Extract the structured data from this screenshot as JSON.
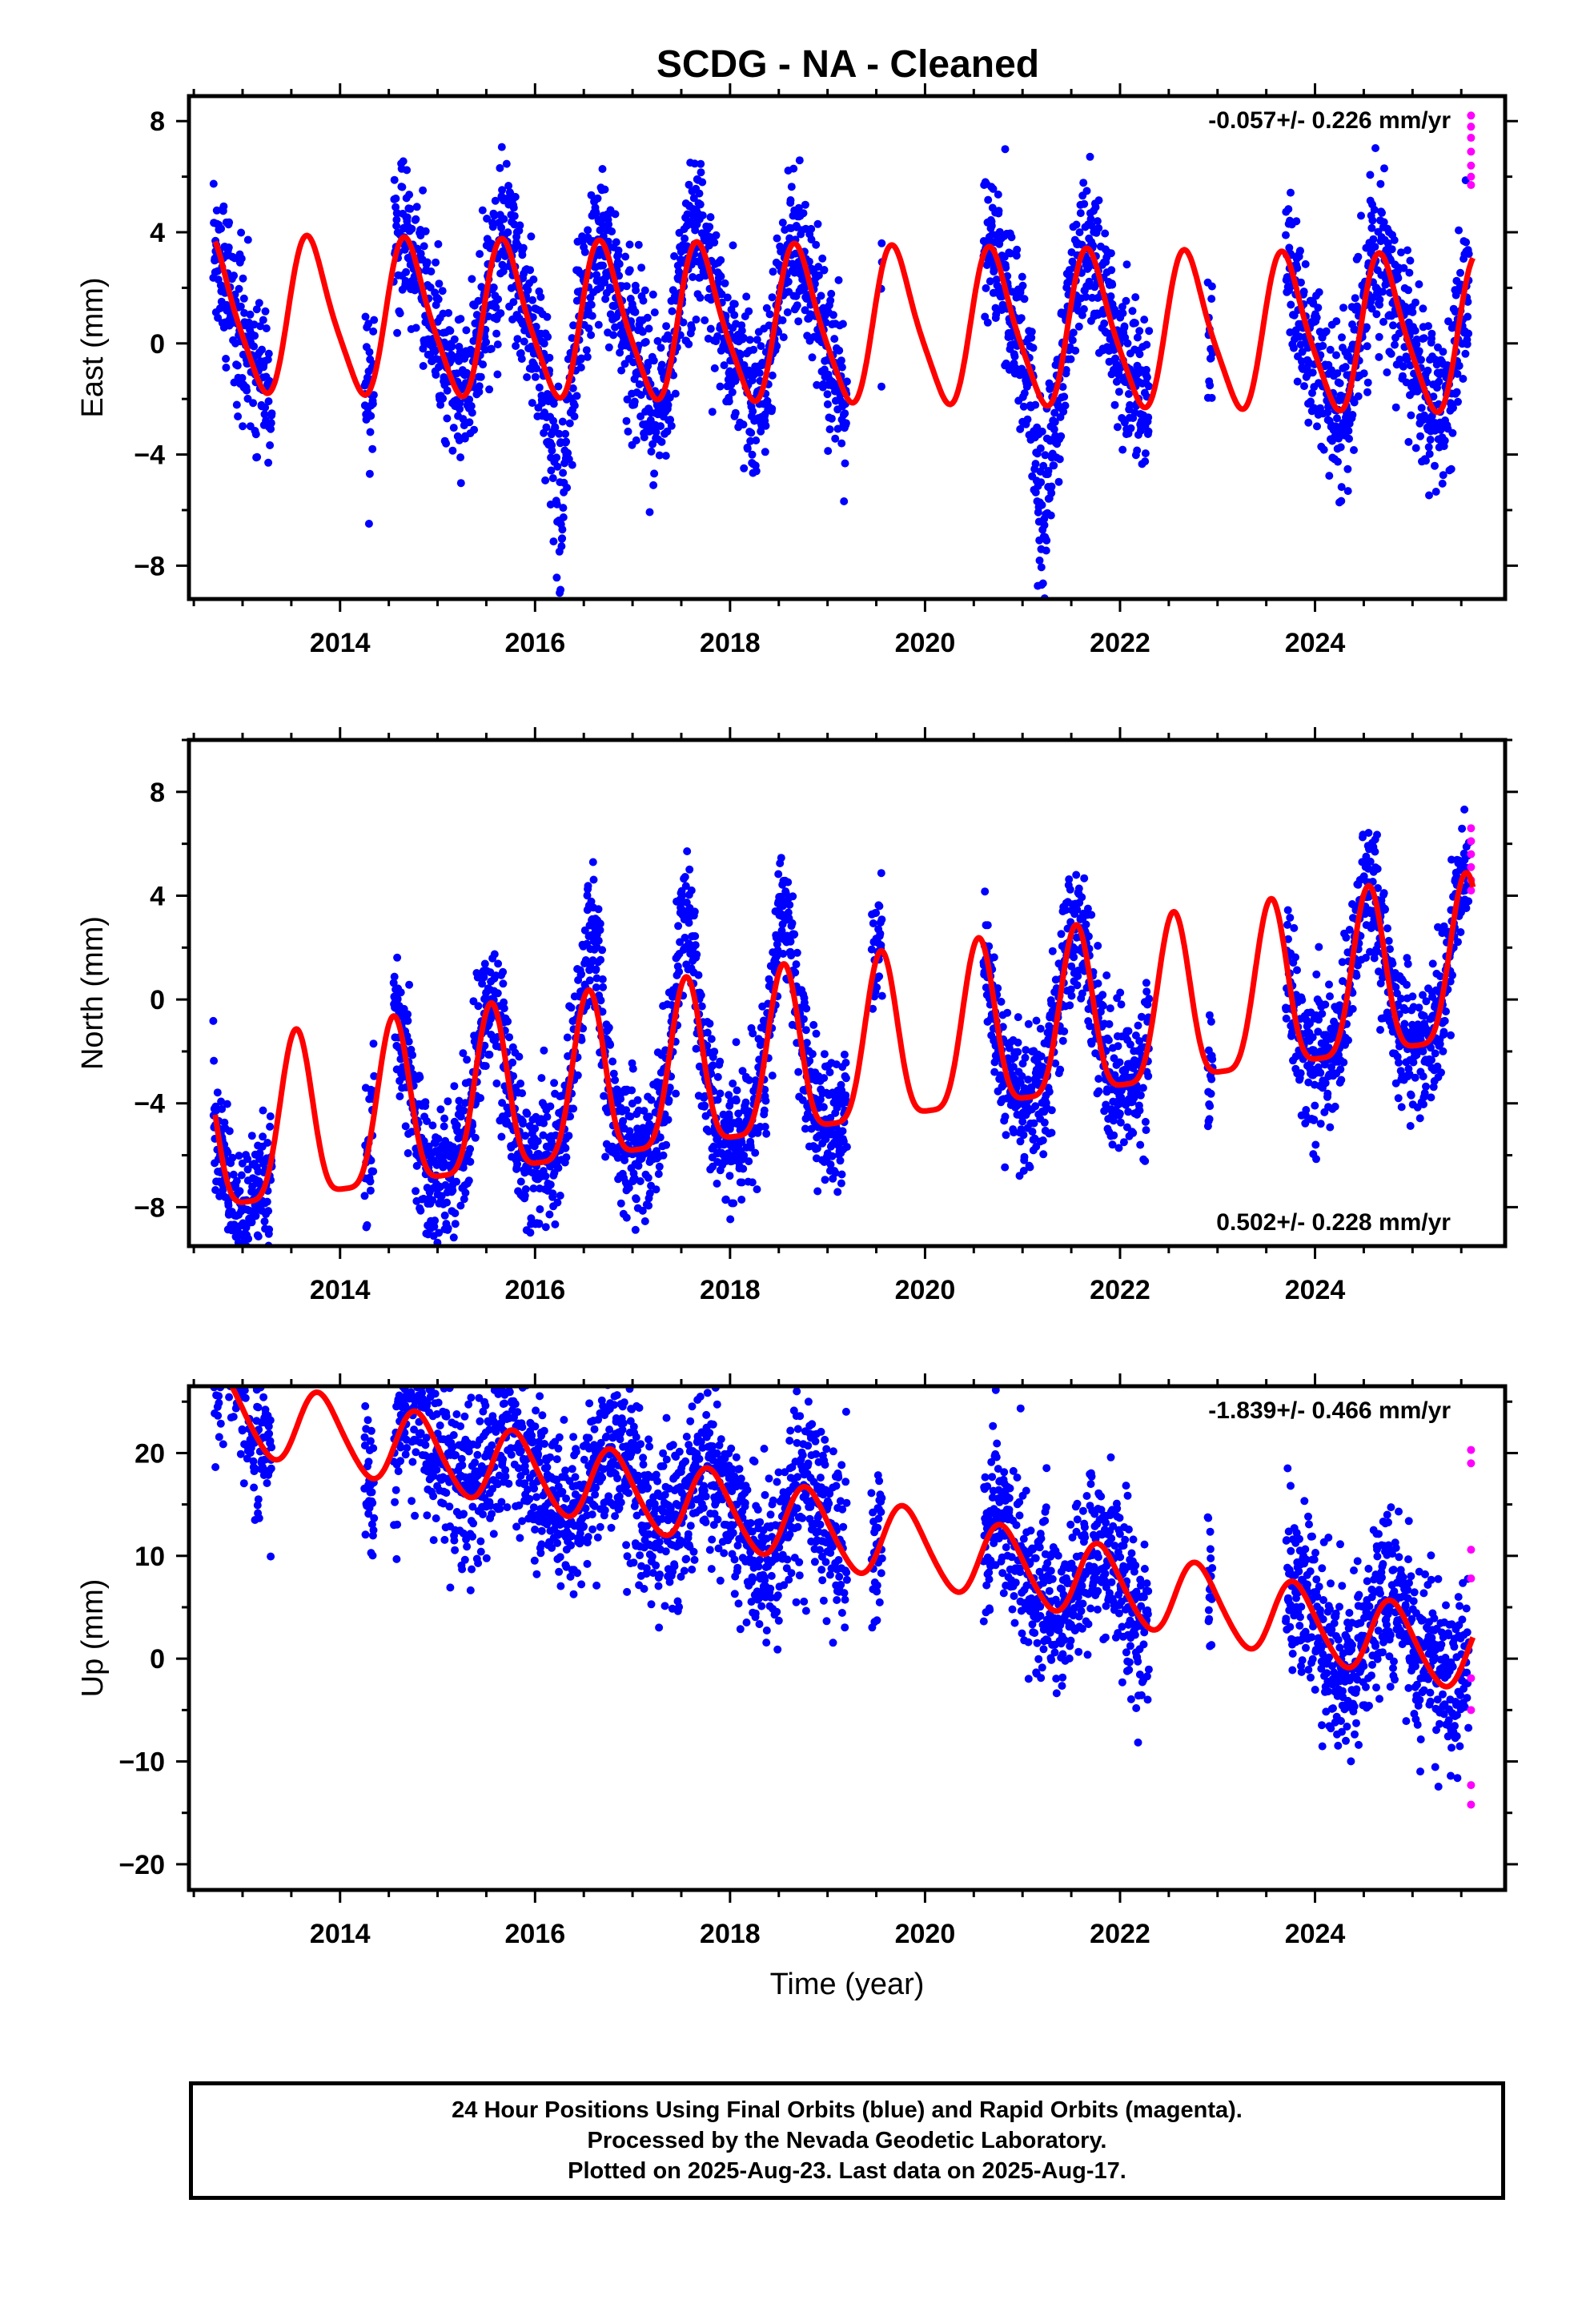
{
  "title": "SCDG  - NA - Cleaned",
  "colors": {
    "final_orbits": "#0000ff",
    "rapid_orbits": "#ff00ff",
    "model": "#ff0000",
    "frame": "#000000"
  },
  "chart_data": [
    {
      "type": "scatter",
      "name": "east",
      "ylabel": "East (mm)",
      "xlabel": "",
      "xlim": [
        2012.45,
        2025.95
      ],
      "ylim": [
        -9.2,
        8.9
      ],
      "xticks": [
        2014,
        2016,
        2018,
        2020,
        2022,
        2024
      ],
      "yticks": [
        -8,
        -4,
        0,
        4,
        8
      ],
      "rate_label": "-0.057+/- 0.226 mm/yr",
      "rate_position": "top-right",
      "model": {
        "offset": 0.6,
        "trend": -0.057,
        "annual_amp": 2.7,
        "annual_phase_yr": 0.7,
        "semiannual_amp": 0.5,
        "semiannual_phase_yr": 0.1
      },
      "scatter_sd": 1.4,
      "anomalies": [
        [
          2016.25,
          -3.5
        ],
        [
          2021.2,
          -4.0
        ]
      ],
      "data_segments": [
        [
          2012.7,
          2013.3
        ],
        [
          2014.25,
          2014.35
        ],
        [
          2014.55,
          2019.2
        ],
        [
          2019.55,
          2019.56
        ],
        [
          2020.6,
          2022.3
        ],
        [
          2022.9,
          2022.95
        ],
        [
          2023.7,
          2025.58
        ]
      ],
      "rapid_points": [
        [
          2025.6,
          8.2
        ],
        [
          2025.6,
          7.8
        ],
        [
          2025.6,
          7.4
        ],
        [
          2025.6,
          6.9
        ],
        [
          2025.6,
          6.4
        ],
        [
          2025.6,
          6.0
        ],
        [
          2025.6,
          5.7
        ]
      ]
    },
    {
      "type": "scatter",
      "name": "north",
      "ylabel": "North (mm)",
      "xlabel": "",
      "xlim": [
        2012.45,
        2025.95
      ],
      "ylim": [
        -9.5,
        10.0
      ],
      "xticks": [
        2014,
        2016,
        2018,
        2020,
        2022,
        2024
      ],
      "yticks": [
        -8,
        -4,
        0,
        4,
        8
      ],
      "rate_label": "0.502+/- 0.228 mm/yr",
      "rate_position": "bottom-right",
      "model": {
        "offset": -2.4,
        "trend": 0.502,
        "annual_amp": 3.2,
        "annual_phase_yr": 0.55,
        "semiannual_amp": 0.8,
        "semiannual_phase_yr": 0.05
      },
      "scatter_sd": 1.3,
      "anomalies": [
        [
          2016.6,
          2.5
        ],
        [
          2017.55,
          2.5
        ],
        [
          2018.55,
          2.0
        ]
      ],
      "data_segments": [
        [
          2012.7,
          2013.3
        ],
        [
          2014.25,
          2014.35
        ],
        [
          2014.55,
          2019.2
        ],
        [
          2019.45,
          2019.56
        ],
        [
          2020.6,
          2022.3
        ],
        [
          2022.9,
          2022.95
        ],
        [
          2023.7,
          2025.58
        ]
      ],
      "rapid_points": [
        [
          2025.6,
          6.6
        ],
        [
          2025.6,
          6.1
        ],
        [
          2025.6,
          5.6
        ],
        [
          2025.6,
          5.1
        ],
        [
          2025.6,
          4.6
        ],
        [
          2025.6,
          4.2
        ]
      ]
    },
    {
      "type": "scatter",
      "name": "up",
      "ylabel": "Up (mm)",
      "xlabel": "Time (year)",
      "xlim": [
        2012.45,
        2025.95
      ],
      "ylim": [
        -22.5,
        26.5
      ],
      "xticks": [
        2014,
        2016,
        2018,
        2020,
        2022,
        2024
      ],
      "yticks": [
        -20,
        -10,
        0,
        10,
        20
      ],
      "rate_label": "-1.839+/- 0.466 mm/yr",
      "rate_position": "top-right",
      "model": {
        "offset": 12.5,
        "trend": -1.839,
        "annual_amp": 3.6,
        "annual_phase_yr": 0.8,
        "semiannual_amp": 0.4,
        "semiannual_phase_yr": 0.2
      },
      "scatter_sd": 4.0,
      "anomalies": [
        [
          2012.9,
          6.0
        ]
      ],
      "data_segments": [
        [
          2012.7,
          2013.3
        ],
        [
          2014.25,
          2014.35
        ],
        [
          2014.55,
          2019.2
        ],
        [
          2019.45,
          2019.56
        ],
        [
          2020.6,
          2022.3
        ],
        [
          2022.9,
          2022.95
        ],
        [
          2023.7,
          2025.58
        ]
      ],
      "rapid_points": [
        [
          2025.6,
          20.3
        ],
        [
          2025.6,
          19.0
        ],
        [
          2025.6,
          10.6
        ],
        [
          2025.6,
          7.8
        ],
        [
          2025.6,
          -1.9
        ],
        [
          2025.6,
          -5.0
        ],
        [
          2025.6,
          -12.3
        ],
        [
          2025.6,
          -14.2
        ]
      ]
    }
  ],
  "footer": {
    "line1": "24 Hour Positions Using Final Orbits (blue) and Rapid Orbits (magenta).",
    "line2": "Processed by the Nevada Geodetic Laboratory.",
    "line3": "Plotted on 2025-Aug-23. Last data on 2025-Aug-17."
  }
}
